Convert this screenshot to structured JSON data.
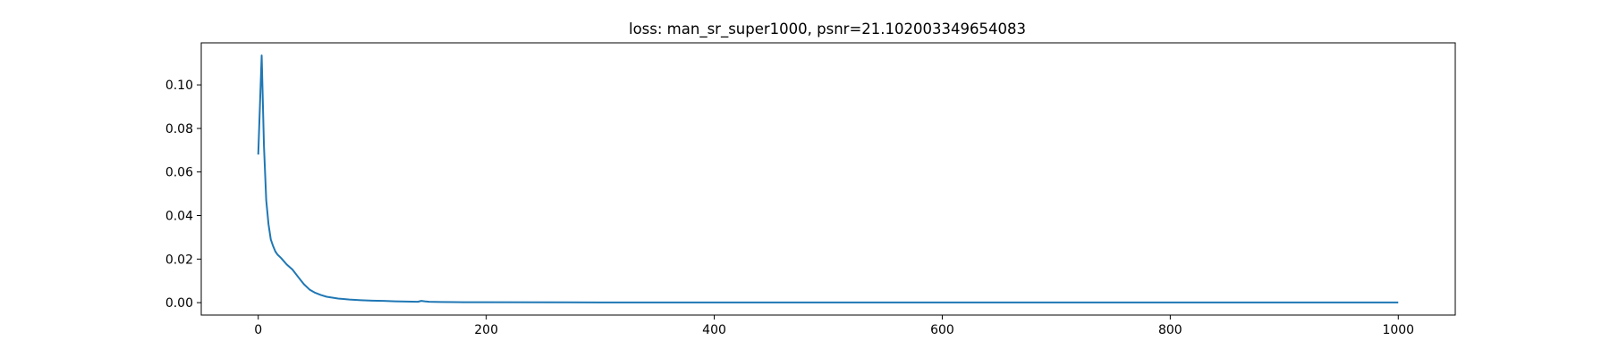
{
  "chart_data": {
    "type": "line",
    "title": "loss: man_sr_super1000, psnr=21.102003349654083",
    "xlabel": "",
    "ylabel": "",
    "xlim": [
      -50,
      1050
    ],
    "ylim": [
      -0.0057,
      0.1193
    ],
    "xticks": [
      0,
      200,
      400,
      600,
      800,
      1000
    ],
    "xtick_labels": [
      "0",
      "200",
      "400",
      "600",
      "800",
      "1000"
    ],
    "yticks": [
      0.0,
      0.02,
      0.04,
      0.06,
      0.08,
      0.1
    ],
    "ytick_labels": [
      "0.00",
      "0.02",
      "0.04",
      "0.06",
      "0.08",
      "0.10"
    ],
    "grid": false,
    "legend": "none",
    "series": [
      {
        "color": "#1f77b4",
        "x": [
          0,
          3,
          5,
          7,
          9,
          11,
          13,
          15,
          17,
          20,
          25,
          30,
          35,
          40,
          45,
          50,
          55,
          60,
          70,
          80,
          90,
          100,
          110,
          120,
          130,
          140,
          143,
          146,
          150,
          160,
          180,
          200,
          300,
          400,
          500,
          600,
          700,
          800,
          900,
          1000
        ],
        "y": [
          0.068,
          0.1135,
          0.072,
          0.047,
          0.036,
          0.029,
          0.026,
          0.0235,
          0.022,
          0.0205,
          0.0175,
          0.0152,
          0.0118,
          0.0085,
          0.006,
          0.0045,
          0.0035,
          0.0027,
          0.0019,
          0.0014,
          0.0011,
          0.0009,
          0.0008,
          0.0006,
          0.0005,
          0.0004,
          0.0008,
          0.0006,
          0.0004,
          0.0003,
          0.0002,
          0.0002,
          0.0001,
          0.0001,
          0.0001,
          0.0001,
          0.0001,
          0.0001,
          0.0001,
          0.0001
        ]
      }
    ]
  }
}
